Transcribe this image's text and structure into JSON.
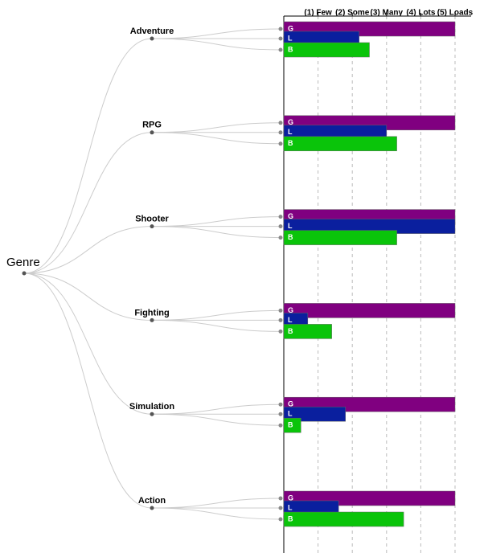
{
  "chart_data": {
    "type": "tree-bar",
    "root": "Genre",
    "categories": [
      "Adventure",
      "RPG",
      "Shooter",
      "Fighting",
      "Simulation",
      "Action"
    ],
    "series": [
      {
        "name": "G",
        "color": "#800080",
        "values": [
          5,
          5,
          5,
          5,
          5,
          5
        ]
      },
      {
        "name": "L",
        "color": "#0a1f9e",
        "values": [
          2.2,
          3.0,
          5,
          0.7,
          1.8,
          1.6
        ]
      },
      {
        "name": "B",
        "color": "#0ac40a",
        "values": [
          2.5,
          3.3,
          3.3,
          1.4,
          0.5,
          3.5
        ]
      }
    ],
    "xlim": [
      0,
      5
    ],
    "xticks": [
      {
        "value": 1,
        "label": "(1) Few"
      },
      {
        "value": 2,
        "label": "(2) Some"
      },
      {
        "value": 3,
        "label": "(3) Many"
      },
      {
        "value": 4,
        "label": "(4) Lots"
      },
      {
        "value": 5,
        "label": "(5) Loads"
      }
    ],
    "grid": true
  }
}
